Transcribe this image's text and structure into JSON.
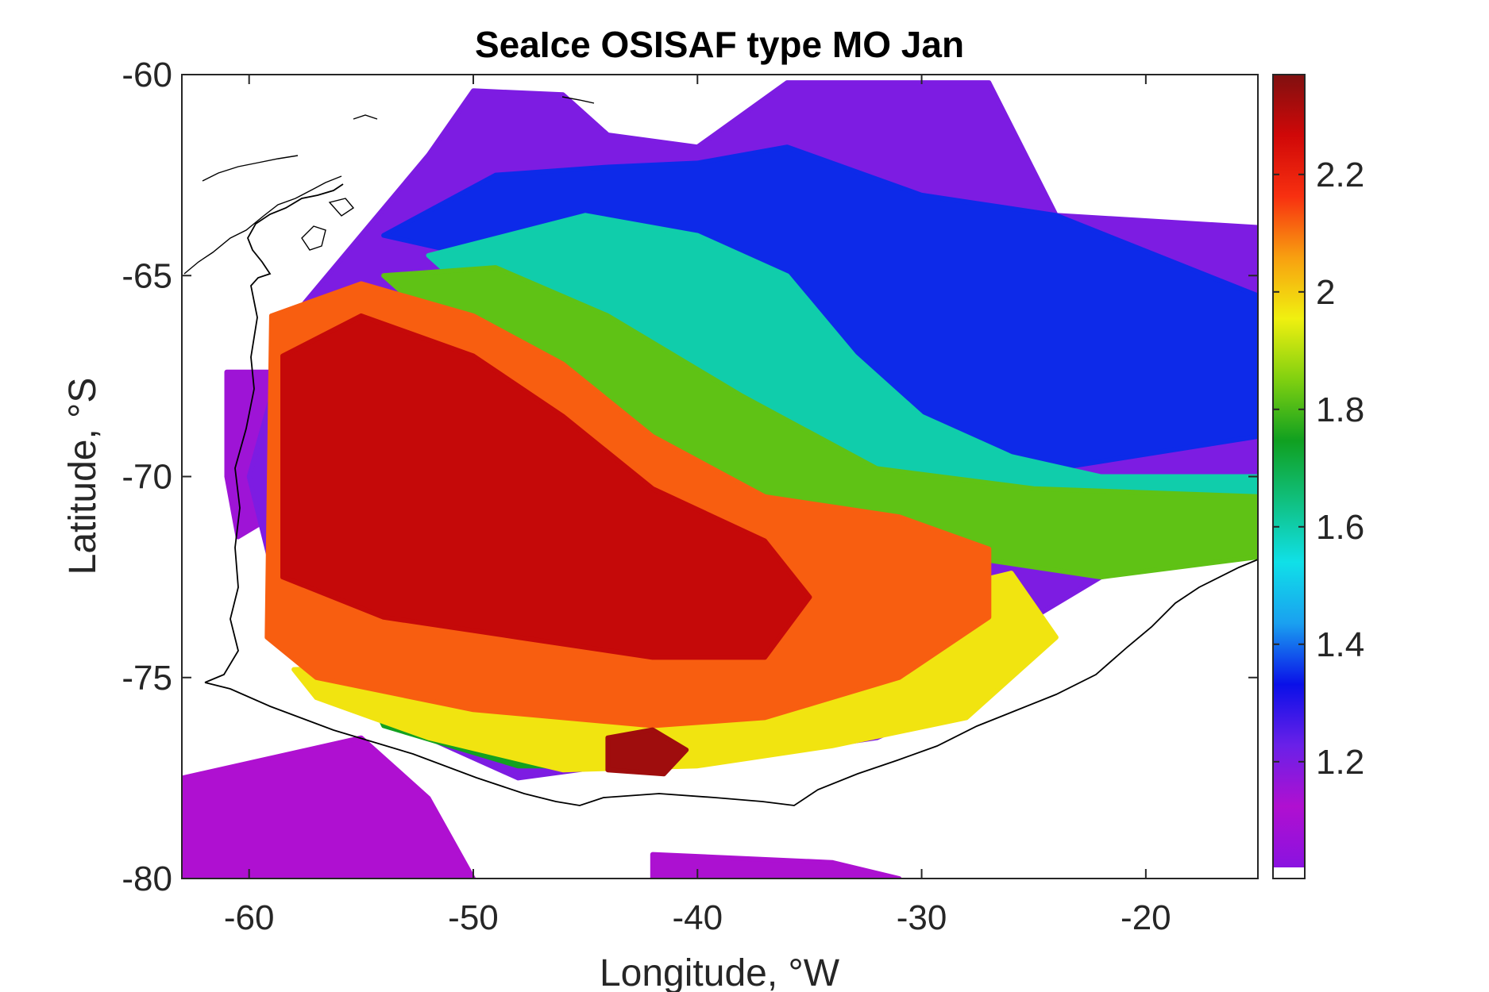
{
  "chart_data": {
    "type": "heatmap",
    "title": "SeaIce OSISAF type MO Jan",
    "xlabel": "Longitude, °W",
    "ylabel": "Latitude, °S",
    "xlim": [
      -63,
      -15
    ],
    "ylim": [
      -80,
      -60
    ],
    "x_ticks": [
      -60,
      -50,
      -40,
      -30,
      -20
    ],
    "y_ticks": [
      -80,
      -75,
      -70,
      -65,
      -60
    ],
    "colorbar": {
      "range": [
        1.02,
        2.37
      ],
      "ticks": [
        1.2,
        1.4,
        1.6,
        1.8,
        2,
        2.2
      ],
      "colormap": [
        "#8a12e0",
        "#b010d0",
        "#6a20e8",
        "#0a10e8",
        "#1aa0f0",
        "#10e0e8",
        "#10c080",
        "#10a020",
        "#80d010",
        "#f0f010",
        "#f8a010",
        "#f83010",
        "#d00808",
        "#801010"
      ]
    },
    "regions": [
      {
        "value": 1.12,
        "polygon": [
          [
            -63,
            -77.5
          ],
          [
            -55,
            -76.5
          ],
          [
            -52,
            -78
          ],
          [
            -50,
            -80
          ],
          [
            -63,
            -80
          ]
        ]
      },
      {
        "value": 1.13,
        "polygon": [
          [
            -42,
            -79.4
          ],
          [
            -34,
            -79.6
          ],
          [
            -31,
            -80
          ],
          [
            -42,
            -80
          ]
        ]
      },
      {
        "value": 1.15,
        "polygon": [
          [
            -61,
            -67.4
          ],
          [
            -59,
            -67.4
          ],
          [
            -59,
            -71
          ],
          [
            -60.5,
            -71.5
          ],
          [
            -61,
            -70
          ]
        ]
      },
      {
        "value": 1.2,
        "polygon": [
          [
            -52,
            -62
          ],
          [
            -50,
            -60.4
          ],
          [
            -46,
            -60.5
          ],
          [
            -44,
            -61.5
          ],
          [
            -40,
            -61.8
          ],
          [
            -36,
            -60.2
          ],
          [
            -27,
            -60.2
          ],
          [
            -24,
            -63.5
          ],
          [
            -15,
            -63.8
          ],
          [
            -15,
            -71.5
          ],
          [
            -17,
            -72
          ],
          [
            -22,
            -72.5
          ],
          [
            -25,
            -73.5
          ],
          [
            -28,
            -75.5
          ],
          [
            -32,
            -76.5
          ],
          [
            -38,
            -77
          ],
          [
            -44,
            -77.2
          ],
          [
            -48,
            -77.5
          ],
          [
            -54,
            -76
          ],
          [
            -58,
            -74.5
          ],
          [
            -60,
            -70
          ],
          [
            -58,
            -66
          ],
          [
            -55,
            -64
          ]
        ]
      },
      {
        "value": 1.35,
        "polygon": [
          [
            -49,
            -62.5
          ],
          [
            -44,
            -62.3
          ],
          [
            -40,
            -62.2
          ],
          [
            -36,
            -61.8
          ],
          [
            -30,
            -63
          ],
          [
            -24,
            -63.5
          ],
          [
            -15,
            -65.5
          ],
          [
            -15,
            -69
          ],
          [
            -24,
            -69.8
          ],
          [
            -30,
            -69.2
          ],
          [
            -36,
            -68
          ],
          [
            -44,
            -66
          ],
          [
            -50,
            -64.5
          ],
          [
            -54,
            -64
          ]
        ]
      },
      {
        "value": 1.6,
        "polygon": [
          [
            -52,
            -64.5
          ],
          [
            -45,
            -63.5
          ],
          [
            -40,
            -64
          ],
          [
            -36,
            -65
          ],
          [
            -33,
            -67
          ],
          [
            -30,
            -68.5
          ],
          [
            -26,
            -69.5
          ],
          [
            -22,
            -70
          ],
          [
            -15,
            -70
          ],
          [
            -15,
            -71
          ],
          [
            -22,
            -72
          ],
          [
            -27,
            -72
          ],
          [
            -32,
            -71
          ],
          [
            -38,
            -69.5
          ],
          [
            -44,
            -67
          ],
          [
            -50,
            -65.5
          ]
        ]
      },
      {
        "value": 1.82,
        "polygon": [
          [
            -54,
            -65
          ],
          [
            -49,
            -64.8
          ],
          [
            -44,
            -66
          ],
          [
            -38,
            -68
          ],
          [
            -32,
            -69.8
          ],
          [
            -25,
            -70.3
          ],
          [
            -15,
            -70.5
          ],
          [
            -15,
            -72
          ],
          [
            -22,
            -72.5
          ],
          [
            -28,
            -72
          ],
          [
            -35,
            -71.3
          ],
          [
            -42,
            -69.5
          ],
          [
            -50,
            -67
          ]
        ]
      },
      {
        "value": 1.75,
        "polygon": [
          [
            -55,
            -75
          ],
          [
            -47,
            -75.8
          ],
          [
            -42,
            -76.3
          ],
          [
            -42,
            -77.2
          ],
          [
            -48,
            -77.2
          ],
          [
            -54,
            -76.2
          ]
        ]
      },
      {
        "value": 1.97,
        "polygon": [
          [
            -58,
            -74.8
          ],
          [
            -50,
            -74.6
          ],
          [
            -40,
            -74.2
          ],
          [
            -32,
            -73.2
          ],
          [
            -26,
            -72.4
          ],
          [
            -24,
            -74
          ],
          [
            -28,
            -76
          ],
          [
            -34,
            -76.7
          ],
          [
            -40,
            -77.2
          ],
          [
            -46,
            -77.3
          ],
          [
            -52,
            -76.5
          ],
          [
            -57,
            -75.5
          ]
        ]
      },
      {
        "value": 2.12,
        "polygon": [
          [
            -59,
            -66
          ],
          [
            -55,
            -65.2
          ],
          [
            -50,
            -66
          ],
          [
            -46,
            -67.2
          ],
          [
            -42,
            -69
          ],
          [
            -37,
            -70.5
          ],
          [
            -31,
            -71
          ],
          [
            -27,
            -71.8
          ],
          [
            -27,
            -73.5
          ],
          [
            -31,
            -75
          ],
          [
            -37,
            -76
          ],
          [
            -42,
            -76.2
          ],
          [
            -50,
            -75.8
          ],
          [
            -57,
            -75
          ],
          [
            -59.2,
            -74
          ]
        ]
      },
      {
        "value": 2.28,
        "polygon": [
          [
            -58.5,
            -67
          ],
          [
            -55,
            -66
          ],
          [
            -50,
            -67
          ],
          [
            -46,
            -68.5
          ],
          [
            -42,
            -70.3
          ],
          [
            -37,
            -71.6
          ],
          [
            -35,
            -73
          ],
          [
            -37,
            -74.5
          ],
          [
            -42,
            -74.5
          ],
          [
            -48,
            -74
          ],
          [
            -54,
            -73.5
          ],
          [
            -58.5,
            -72.5
          ]
        ]
      },
      {
        "value": 2.33,
        "polygon": [
          [
            -44,
            -76.5
          ],
          [
            -42,
            -76.3
          ],
          [
            -40.5,
            -76.8
          ],
          [
            -41.5,
            -77.4
          ],
          [
            -44,
            -77.3
          ]
        ]
      }
    ]
  }
}
